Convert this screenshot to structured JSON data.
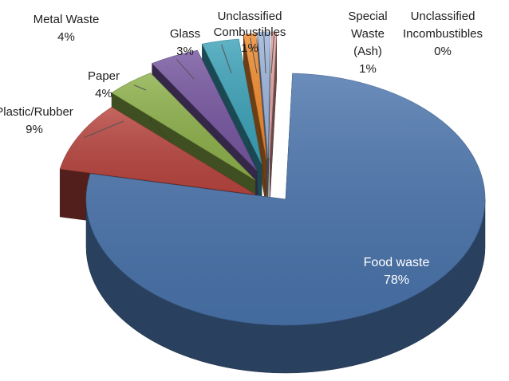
{
  "chart_data": {
    "type": "pie",
    "style": "3d-exploded",
    "title": "",
    "legend": "none",
    "slices": [
      {
        "label": "Food waste",
        "value_label": "78%",
        "value": 78,
        "color": "#4a74ac"
      },
      {
        "label": "Plastic/Rubber",
        "value_label": "9%",
        "value": 9,
        "color": "#b8453f"
      },
      {
        "label": "Paper",
        "value_label": "4%",
        "value": 4,
        "color": "#8db04a"
      },
      {
        "label": "Metal Waste",
        "value_label": "4%",
        "value": 4,
        "color": "#7656a0"
      },
      {
        "label": "Glass",
        "value_label": "3%",
        "value": 3,
        "color": "#3ca2b8"
      },
      {
        "label": "Unclassified\nCombustibles",
        "value_label": "1%",
        "value": 1,
        "color": "#ef8a2e"
      },
      {
        "label": "Special\nWaste\n(Ash)",
        "value_label": "1%",
        "value": 1,
        "color": "#9cb4dc"
      },
      {
        "label": "Unclassified\nIncombustibles",
        "value_label": "0%",
        "value": 0.4,
        "color": "#e6a2a0"
      }
    ]
  }
}
